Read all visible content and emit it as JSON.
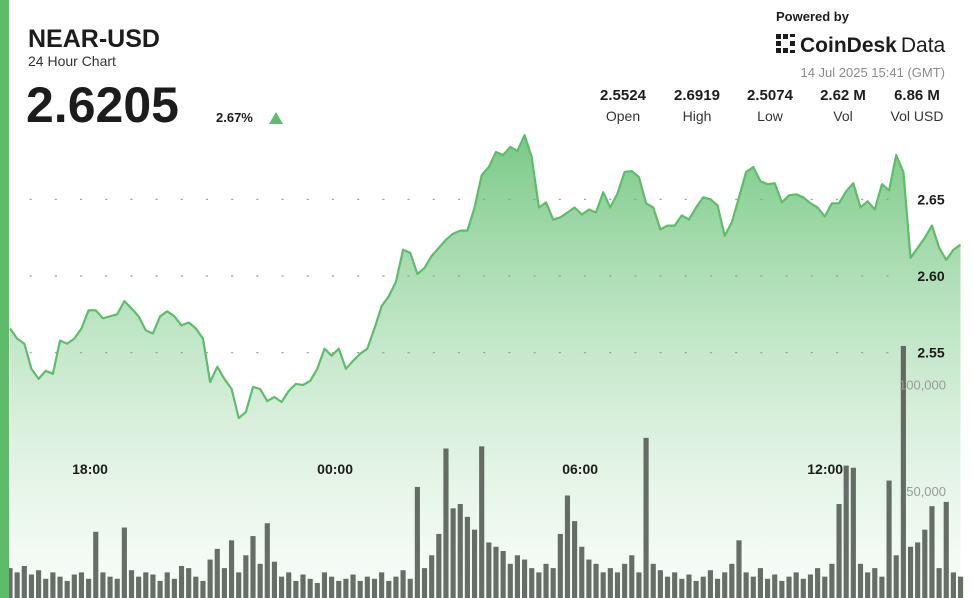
{
  "header": {
    "symbol": "NEAR-USD",
    "subtitle": "24 Hour Chart",
    "price": "2.6205",
    "change": "2.67%",
    "powered_by": "Powered by",
    "brand": "CoinDesk",
    "brand_suffix": "Data",
    "timestamp": "14 Jul 2025 15:41 (GMT)"
  },
  "stats": [
    {
      "value": "2.5524",
      "label": "Open"
    },
    {
      "value": "2.6919",
      "label": "High"
    },
    {
      "value": "2.5074",
      "label": "Low"
    },
    {
      "value": "2.62 M",
      "label": "Vol"
    },
    {
      "value": "6.86 M",
      "label": "Vol USD"
    }
  ],
  "chart_data": {
    "type": "line",
    "x": [
      16.04,
      16.215,
      16.39,
      16.565,
      16.74,
      16.915,
      17.09,
      17.265,
      17.44,
      17.615,
      17.79,
      17.965,
      18.14,
      18.315,
      18.49,
      18.665,
      18.84,
      19.015,
      19.19,
      19.365,
      19.54,
      19.715,
      19.89,
      20.065,
      20.24,
      20.415,
      20.59,
      20.765,
      20.94,
      21.115,
      21.29,
      21.465,
      21.64,
      21.815,
      21.99,
      22.165,
      22.34,
      22.515,
      22.69,
      22.865,
      23.04,
      23.215,
      23.39,
      23.565,
      23.74,
      23.915,
      24.09,
      24.265,
      24.44,
      24.615,
      24.79,
      24.965,
      25.14,
      25.315,
      25.49,
      25.665,
      25.84,
      26.015,
      26.19,
      26.365,
      26.54,
      26.715,
      26.89,
      27.065,
      27.24,
      27.415,
      27.59,
      27.765,
      27.94,
      28.115,
      28.29,
      28.465,
      28.64,
      28.815,
      28.99,
      29.165,
      29.34,
      29.515,
      29.69,
      29.865,
      30.04,
      30.215,
      30.39,
      30.565,
      30.74,
      30.915,
      31.09,
      31.265,
      31.44,
      31.615,
      31.79,
      31.965,
      32.14,
      32.315,
      32.49,
      32.665,
      32.84,
      33.015,
      33.19,
      33.365,
      33.54,
      33.715,
      33.89,
      34.065,
      34.24,
      34.415,
      34.59,
      34.765,
      34.94,
      35.115,
      35.29,
      35.465,
      35.64,
      35.815,
      35.99,
      36.165,
      36.34,
      36.515,
      36.69,
      36.865,
      37.04,
      37.215,
      37.39,
      37.565,
      37.74,
      37.915,
      38.09,
      38.265,
      38.44,
      38.615,
      38.79,
      38.965,
      39.14,
      39.315
    ],
    "series": [
      {
        "color": "#5dbd6b",
        "values": [
          2.5658,
          2.5592,
          2.5559,
          2.5395,
          2.5329,
          2.5382,
          2.5362,
          2.5579,
          2.5559,
          2.5592,
          2.5658,
          2.5776,
          2.5776,
          2.5724,
          2.5737,
          2.575,
          2.5836,
          2.5789,
          2.5737,
          2.5645,
          2.5625,
          2.5737,
          2.577,
          2.5737,
          2.5678,
          2.5697,
          2.5658,
          2.5592,
          2.5309,
          2.5408,
          2.5329,
          2.5263,
          2.5074,
          2.5112,
          2.5276,
          2.5263,
          2.5184,
          2.5211,
          2.5178,
          2.525,
          2.5296,
          2.5289,
          2.5316,
          2.5395,
          2.5526,
          2.548,
          2.5526,
          2.5395,
          2.5447,
          2.5493,
          2.5526,
          2.5658,
          2.5803,
          2.5868,
          2.5961,
          2.6171,
          2.6151,
          2.6013,
          2.6053,
          2.6132,
          2.6184,
          2.6237,
          2.6276,
          2.6296,
          2.6296,
          2.6447,
          2.6658,
          2.6711,
          2.6809,
          2.6789,
          2.6842,
          2.6816,
          2.6919,
          2.6776,
          2.6447,
          2.648,
          2.6368,
          2.6382,
          2.6414,
          2.6447,
          2.6401,
          2.6434,
          2.6414,
          2.6546,
          2.6447,
          2.6539,
          2.6678,
          2.6684,
          2.6645,
          2.6474,
          2.6447,
          2.6303,
          2.6329,
          2.6329,
          2.6395,
          2.6368,
          2.6447,
          2.6513,
          2.65,
          2.6461,
          2.6263,
          2.6349,
          2.6513,
          2.6678,
          2.6711,
          2.6618,
          2.6599,
          2.6605,
          2.648,
          2.6526,
          2.6533,
          2.6513,
          2.6474,
          2.6447,
          2.6388,
          2.6474,
          2.6474,
          2.6553,
          2.6605,
          2.6447,
          2.6487,
          2.6434,
          2.6599,
          2.6559,
          2.6789,
          2.6678,
          2.6118,
          2.6184,
          2.625,
          2.6329,
          2.6184,
          2.6105,
          2.6171,
          2.6205
        ]
      },
      {
        "type": "bar",
        "axis": "y2",
        "color": "#4e544e",
        "values": [
          14000,
          12000,
          15000,
          11000,
          13000,
          9000,
          12000,
          10000,
          8000,
          11000,
          12000,
          9000,
          31000,
          12000,
          10000,
          9000,
          33000,
          13000,
          10000,
          12000,
          11000,
          8000,
          12000,
          9000,
          15000,
          14000,
          10000,
          8000,
          18000,
          23000,
          14000,
          27000,
          12000,
          20000,
          29000,
          16000,
          35000,
          17000,
          10000,
          12000,
          8000,
          11000,
          9000,
          7000,
          12000,
          10000,
          8000,
          9000,
          11000,
          8000,
          10000,
          9000,
          12000,
          8000,
          10000,
          13000,
          9000,
          52000,
          14000,
          20000,
          30000,
          70000,
          42000,
          44000,
          38000,
          32000,
          71000,
          26000,
          24000,
          22000,
          16000,
          20000,
          18000,
          14000,
          12000,
          16000,
          14000,
          30000,
          48000,
          36000,
          24000,
          18000,
          16000,
          12000,
          14000,
          12000,
          16000,
          20000,
          12000,
          75000,
          16000,
          13000,
          10000,
          12000,
          9000,
          11000,
          8000,
          10000,
          13000,
          9000,
          12000,
          16000,
          27000,
          12000,
          10000,
          14000,
          9000,
          11000,
          8000,
          10000,
          12000,
          9000,
          11000,
          14000,
          10000,
          16000,
          44000,
          62000,
          61000,
          16000,
          12000,
          14000,
          10000,
          55000,
          20000,
          118000,
          24000,
          26000,
          32000,
          43000,
          14000,
          45000,
          12000,
          10000
        ]
      }
    ],
    "xlim": [
      16.04,
      39.62
    ],
    "xticks": [
      {
        "value": 18,
        "label": "18:00"
      },
      {
        "value": 24,
        "label": "00:00"
      },
      {
        "value": 30,
        "label": "06:00"
      },
      {
        "value": 36,
        "label": "12:00"
      }
    ],
    "ylim": [
      2.39,
      2.78
    ],
    "yticks": [
      2.55,
      {
        "value": 2.6,
        "label": "2.60"
      },
      2.65
    ],
    "y2lim": [
      0,
      280000
    ],
    "y2ticks": [
      {
        "value": 50000,
        "label": "50,000"
      },
      {
        "value": 100000,
        "label": "100,000"
      }
    ],
    "grid": true
  }
}
